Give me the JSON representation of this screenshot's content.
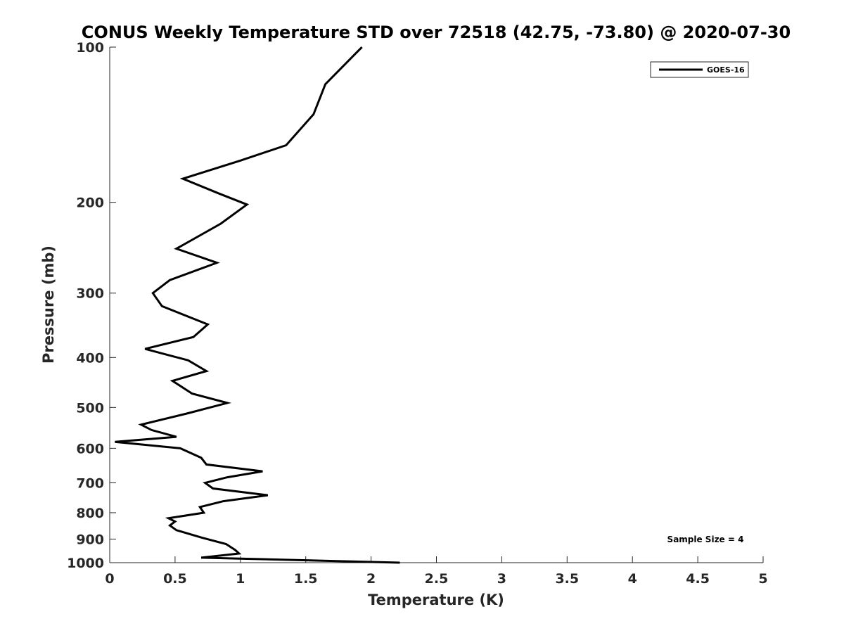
{
  "chart_data": {
    "type": "line",
    "title": "CONUS Weekly Temperature STD over 72518 (42.75, -73.80) @ 2020-07-30",
    "xlabel": "Temperature (K)",
    "ylabel": "Pressure (mb)",
    "xlim": [
      0,
      5
    ],
    "ylim": [
      100,
      1000
    ],
    "yscale": "log",
    "y_reversed": true,
    "xticks": [
      0,
      0.5,
      1,
      1.5,
      2,
      2.5,
      3,
      3.5,
      4,
      4.5,
      5
    ],
    "xtick_labels": [
      "0",
      "0.5",
      "1",
      "1.5",
      "2",
      "2.5",
      "3",
      "3.5",
      "4",
      "4.5",
      "5"
    ],
    "yticks": [
      100,
      200,
      300,
      400,
      500,
      600,
      700,
      800,
      900,
      1000
    ],
    "ytick_labels": [
      "100",
      "200",
      "300",
      "400",
      "500",
      "600",
      "700",
      "800",
      "900",
      "1000"
    ],
    "grid": false,
    "legend_position": "top-right",
    "annotation": "Sample Size = 4",
    "series": [
      {
        "name": "GOES-16",
        "color": "#000000",
        "points": [
          [
            1.93,
            100
          ],
          [
            1.65,
            118
          ],
          [
            1.56,
            135
          ],
          [
            1.35,
            155
          ],
          [
            1.0,
            166
          ],
          [
            0.56,
            180
          ],
          [
            0.83,
            192
          ],
          [
            1.05,
            202
          ],
          [
            0.85,
            220
          ],
          [
            0.51,
            246
          ],
          [
            0.82,
            262
          ],
          [
            0.46,
            283
          ],
          [
            0.33,
            300
          ],
          [
            0.4,
            318
          ],
          [
            0.75,
            345
          ],
          [
            0.64,
            365
          ],
          [
            0.27,
            385
          ],
          [
            0.6,
            405
          ],
          [
            0.74,
            425
          ],
          [
            0.48,
            444
          ],
          [
            0.63,
            470
          ],
          [
            0.9,
            490
          ],
          [
            0.6,
            513
          ],
          [
            0.24,
            540
          ],
          [
            0.32,
            553
          ],
          [
            0.51,
            570
          ],
          [
            0.04,
            583
          ],
          [
            0.54,
            600
          ],
          [
            0.7,
            626
          ],
          [
            0.74,
            645
          ],
          [
            1.17,
            665
          ],
          [
            0.9,
            683
          ],
          [
            0.73,
            700
          ],
          [
            0.79,
            718
          ],
          [
            1.21,
            740
          ],
          [
            0.87,
            760
          ],
          [
            0.69,
            780
          ],
          [
            0.72,
            800
          ],
          [
            0.45,
            820
          ],
          [
            0.5,
            832
          ],
          [
            0.46,
            847
          ],
          [
            0.51,
            865
          ],
          [
            0.71,
            895
          ],
          [
            0.89,
            920
          ],
          [
            0.96,
            945
          ],
          [
            0.99,
            960
          ],
          [
            0.7,
            978
          ],
          [
            1.05,
            983
          ],
          [
            2.22,
            1000
          ]
        ]
      }
    ]
  }
}
